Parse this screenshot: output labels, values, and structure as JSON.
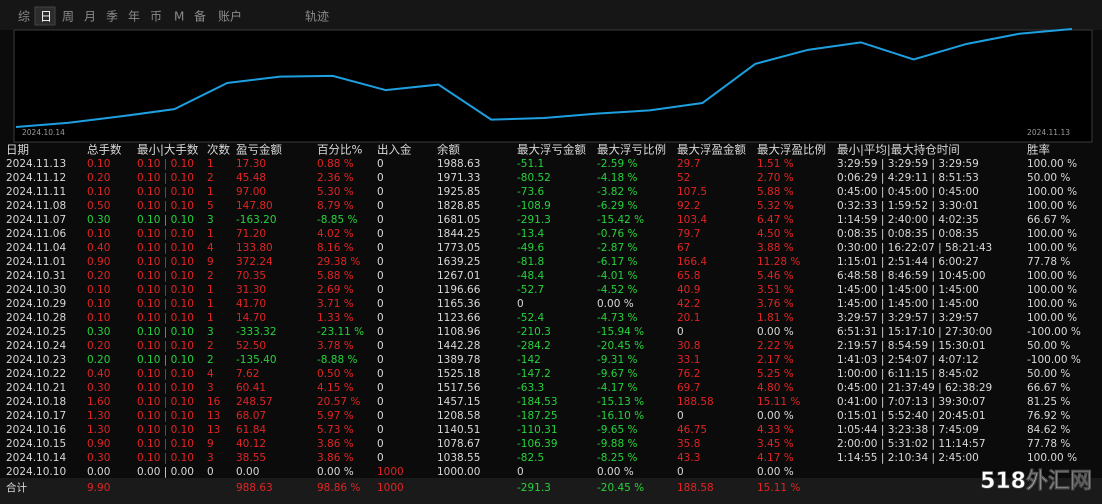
{
  "tabs": [
    "综",
    "日",
    "周",
    "月",
    "季",
    "年",
    "币",
    "M",
    "备",
    "账户",
    "轨迹"
  ],
  "active_tab": "日",
  "chart_data": {
    "type": "line",
    "categories": [
      "2024.10.14",
      null,
      null,
      null,
      null,
      null,
      null,
      null,
      null,
      null,
      null,
      null,
      null,
      null,
      null,
      null,
      null,
      null,
      null,
      null,
      "2024.11.13"
    ],
    "values": [
      1038.55,
      1078.67,
      1140.51,
      1208.58,
      1457.15,
      1517.56,
      1525.18,
      1389.78,
      1442.28,
      1108.96,
      1123.66,
      1165.36,
      1196.66,
      1267.01,
      1639.25,
      1773.05,
      1844.25,
      1681.05,
      1828.85,
      1925.85,
      1971.33
    ],
    "color": "#1e9fe0"
  },
  "colors": {
    "profit": "#e02424",
    "loss": "#27d13c",
    "neutral": "#d8d8d8"
  },
  "table": {
    "columns": [
      "日期",
      "总手数",
      "最小|大手数",
      "次数",
      "盈亏金额",
      "百分比%",
      "出入金",
      "余额",
      "最大浮亏金额",
      "最大浮亏比例",
      "最大浮盈金额",
      "最大浮盈比例",
      "最小|平均|最大持仓时间",
      "胜率"
    ],
    "rows": [
      [
        "2024.11.13",
        "0.10",
        "0.10 | 0.10",
        "1",
        "17.30",
        "0.88 %",
        "0",
        "1988.63",
        "-51.1",
        "-2.59 %",
        "29.7",
        "1.51 %",
        "3:29:59 | 3:29:59 | 3:29:59",
        "100.00 %"
      ],
      [
        "2024.11.12",
        "0.20",
        "0.10 | 0.10",
        "2",
        "45.48",
        "2.36 %",
        "0",
        "1971.33",
        "-80.52",
        "-4.18 %",
        "52",
        "2.70 %",
        "0:06:29 | 4:29:11 | 8:51:53",
        "50.00 %"
      ],
      [
        "2024.11.11",
        "0.10",
        "0.10 | 0.10",
        "1",
        "97.00",
        "5.30 %",
        "0",
        "1925.85",
        "-73.6",
        "-3.82 %",
        "107.5",
        "5.88 %",
        "0:45:00 | 0:45:00 | 0:45:00",
        "100.00 %"
      ],
      [
        "2024.11.08",
        "0.50",
        "0.10 | 0.10",
        "5",
        "147.80",
        "8.79 %",
        "0",
        "1828.85",
        "-108.9",
        "-6.29 %",
        "92.2",
        "5.32 %",
        "0:32:33 | 1:59:52 | 3:30:01",
        "100.00 %"
      ],
      [
        "2024.11.07",
        "0.30",
        "0.10 | 0.10",
        "3",
        "-163.20",
        "-8.85 %",
        "0",
        "1681.05",
        "-291.3",
        "-15.42 %",
        "103.4",
        "6.47 %",
        "1:14:59 | 2:40:00 | 4:02:35",
        "66.67 %"
      ],
      [
        "2024.11.06",
        "0.10",
        "0.10 | 0.10",
        "1",
        "71.20",
        "4.02 %",
        "0",
        "1844.25",
        "-13.4",
        "-0.76 %",
        "79.7",
        "4.50 %",
        "0:08:35 | 0:08:35 | 0:08:35",
        "100.00 %"
      ],
      [
        "2024.11.04",
        "0.40",
        "0.10 | 0.10",
        "4",
        "133.80",
        "8.16 %",
        "0",
        "1773.05",
        "-49.6",
        "-2.87 %",
        "67",
        "3.88 %",
        "0:30:00 | 16:22:07 | 58:21:43",
        "100.00 %"
      ],
      [
        "2024.11.01",
        "0.90",
        "0.10 | 0.10",
        "9",
        "372.24",
        "29.38 %",
        "0",
        "1639.25",
        "-81.8",
        "-6.17 %",
        "166.4",
        "11.28 %",
        "1:15:01 | 2:51:44 | 6:00:27",
        "77.78 %"
      ],
      [
        "2024.10.31",
        "0.20",
        "0.10 | 0.10",
        "2",
        "70.35",
        "5.88 %",
        "0",
        "1267.01",
        "-48.4",
        "-4.01 %",
        "65.8",
        "5.46 %",
        "6:48:58 | 8:46:59 | 10:45:00",
        "100.00 %"
      ],
      [
        "2024.10.30",
        "0.10",
        "0.10 | 0.10",
        "1",
        "31.30",
        "2.69 %",
        "0",
        "1196.66",
        "-52.7",
        "-4.52 %",
        "40.9",
        "3.51 %",
        "1:45:00 | 1:45:00 | 1:45:00",
        "100.00 %"
      ],
      [
        "2024.10.29",
        "0.10",
        "0.10 | 0.10",
        "1",
        "41.70",
        "3.71 %",
        "0",
        "1165.36",
        "0",
        "0.00 %",
        "42.2",
        "3.76 %",
        "1:45:00 | 1:45:00 | 1:45:00",
        "100.00 %"
      ],
      [
        "2024.10.28",
        "0.10",
        "0.10 | 0.10",
        "1",
        "14.70",
        "1.33 %",
        "0",
        "1123.66",
        "-52.4",
        "-4.73 %",
        "20.1",
        "1.81 %",
        "3:29:57 | 3:29:57 | 3:29:57",
        "100.00 %"
      ],
      [
        "2024.10.25",
        "0.30",
        "0.10 | 0.10",
        "3",
        "-333.32",
        "-23.11 %",
        "0",
        "1108.96",
        "-210.3",
        "-15.94 %",
        "0",
        "0.00 %",
        "6:51:31 | 15:17:10 | 27:30:00",
        "-100.00 %"
      ],
      [
        "2024.10.24",
        "0.20",
        "0.10 | 0.10",
        "2",
        "52.50",
        "3.78 %",
        "0",
        "1442.28",
        "-284.2",
        "-20.45 %",
        "30.8",
        "2.22 %",
        "2:19:57 | 8:54:59 | 15:30:01",
        "50.00 %"
      ],
      [
        "2024.10.23",
        "0.20",
        "0.10 | 0.10",
        "2",
        "-135.40",
        "-8.88 %",
        "0",
        "1389.78",
        "-142",
        "-9.31 %",
        "33.1",
        "2.17 %",
        "1:41:03 | 2:54:07 | 4:07:12",
        "-100.00 %"
      ],
      [
        "2024.10.22",
        "0.40",
        "0.10 | 0.10",
        "4",
        "7.62",
        "0.50 %",
        "0",
        "1525.18",
        "-147.2",
        "-9.67 %",
        "76.2",
        "5.25 %",
        "1:00:00 | 6:11:15 | 8:45:02",
        "50.00 %"
      ],
      [
        "2024.10.21",
        "0.30",
        "0.10 | 0.10",
        "3",
        "60.41",
        "4.15 %",
        "0",
        "1517.56",
        "-63.3",
        "-4.17 %",
        "69.7",
        "4.80 %",
        "0:45:00 | 21:37:49 | 62:38:29",
        "66.67 %"
      ],
      [
        "2024.10.18",
        "1.60",
        "0.10 | 0.10",
        "16",
        "248.57",
        "20.57 %",
        "0",
        "1457.15",
        "-184.53",
        "-15.13 %",
        "188.58",
        "15.11 %",
        "0:41:00 | 7:07:13 | 39:30:07",
        "81.25 %"
      ],
      [
        "2024.10.17",
        "1.30",
        "0.10 | 0.10",
        "13",
        "68.07",
        "5.97 %",
        "0",
        "1208.58",
        "-187.25",
        "-16.10 %",
        "0",
        "0.00 %",
        "0:15:01 | 5:52:40 | 20:45:01",
        "76.92 %"
      ],
      [
        "2024.10.16",
        "1.30",
        "0.10 | 0.10",
        "13",
        "61.84",
        "5.73 %",
        "0",
        "1140.51",
        "-110.31",
        "-9.65 %",
        "46.75",
        "4.33 %",
        "1:05:44 | 3:23:38 | 7:45:09",
        "84.62 %"
      ],
      [
        "2024.10.15",
        "0.90",
        "0.10 | 0.10",
        "9",
        "40.12",
        "3.86 %",
        "0",
        "1078.67",
        "-106.39",
        "-9.88 %",
        "35.8",
        "3.45 %",
        "2:00:00 | 5:31:02 | 11:14:57",
        "77.78 %"
      ],
      [
        "2024.10.14",
        "0.30",
        "0.10 | 0.10",
        "3",
        "38.55",
        "3.86 %",
        "0",
        "1038.55",
        "-82.5",
        "-8.25 %",
        "43.3",
        "4.17 %",
        "1:14:55 | 2:10:34 | 2:45:00",
        "100.00 %"
      ],
      [
        "2024.10.10",
        "0.00",
        "0.00 | 0.00",
        "0",
        "0.00",
        "0.00 %",
        "1000",
        "1000.00",
        "0",
        "0.00 %",
        "0",
        "0.00 %",
        null,
        null
      ]
    ],
    "total": [
      "合计",
      "9.90",
      null,
      null,
      "988.63",
      "98.86 %",
      "1000",
      null,
      "-291.3",
      "-20.45 %",
      "188.58",
      "15.11 %",
      null,
      null
    ]
  },
  "watermark": "518外汇网"
}
